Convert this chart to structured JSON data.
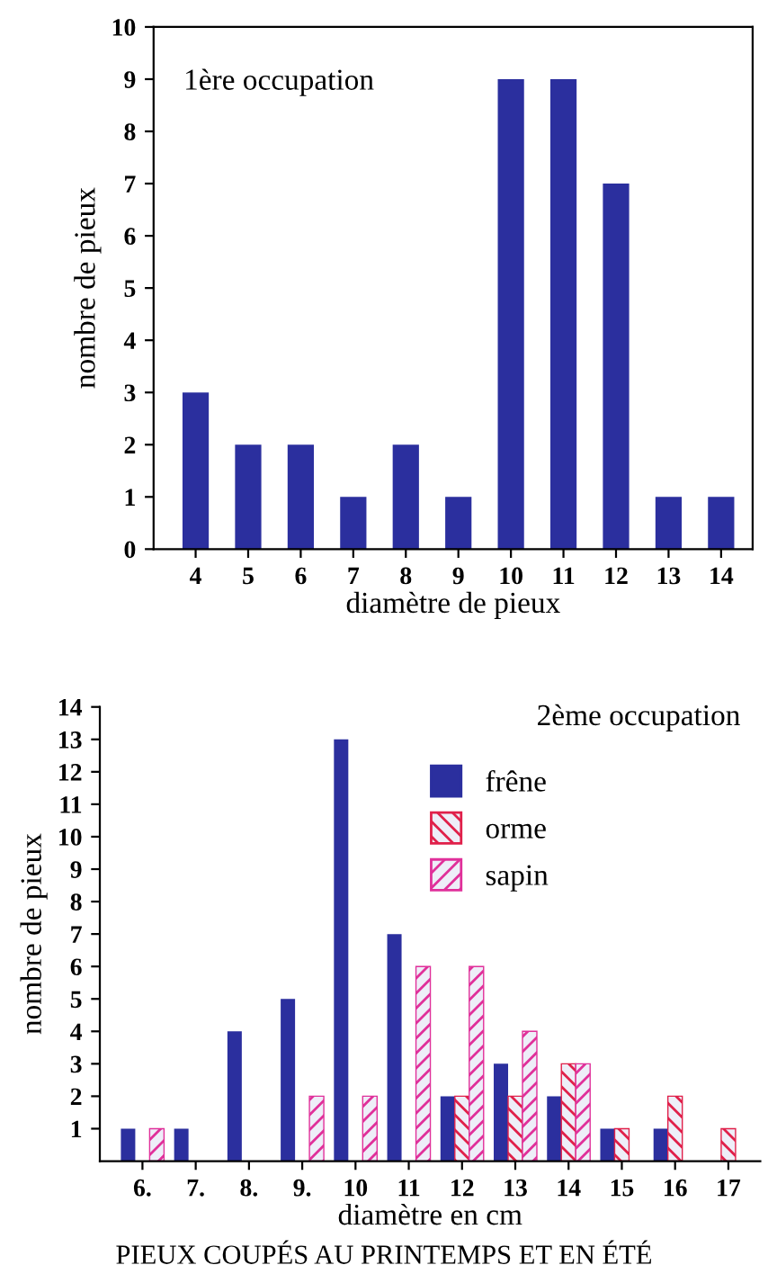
{
  "chart_data": [
    {
      "type": "bar",
      "title": "1ère occupation",
      "xlabel": "diamètre de pieux",
      "ylabel": "nombre de pieux",
      "categories": [
        "4",
        "5",
        "6",
        "7",
        "8",
        "9",
        "10",
        "11",
        "12",
        "13",
        "14"
      ],
      "values": [
        3,
        2,
        2,
        1,
        2,
        1,
        9,
        9,
        7,
        1,
        1
      ],
      "color": "#2b2f9e",
      "ylim": [
        0,
        10
      ],
      "yticks": [
        0,
        1,
        2,
        3,
        4,
        5,
        6,
        7,
        8,
        9,
        10
      ],
      "grid": false,
      "legend": false
    },
    {
      "type": "bar",
      "title": "2ème occupation",
      "xlabel": "diamètre en cm",
      "ylabel": "nombre de pieux",
      "categories": [
        "6.",
        "7.",
        "8.",
        "9.",
        "10",
        "11",
        "12",
        "13",
        "14",
        "15",
        "16",
        "17"
      ],
      "series": [
        {
          "name": "frêne",
          "color": "#2b2f9e",
          "values": [
            1,
            1,
            4,
            5,
            13,
            7,
            2,
            3,
            2,
            1,
            1,
            null
          ]
        },
        {
          "name": "orme",
          "color": "#e0204a",
          "values": [
            null,
            null,
            null,
            null,
            null,
            null,
            2,
            2,
            3,
            1,
            2,
            1
          ]
        },
        {
          "name": "sapin",
          "color": "#e0309a",
          "values": [
            1,
            null,
            null,
            2,
            2,
            6,
            6,
            4,
            3,
            null,
            null,
            null
          ]
        }
      ],
      "ylim": [
        0,
        14
      ],
      "yticks": [
        1,
        2,
        3,
        4,
        5,
        6,
        7,
        8,
        9,
        10,
        11,
        12,
        13,
        14
      ],
      "grid": false,
      "legend": "top right",
      "annotations": [
        "PIEUX COUPÉS AU PRINTEMPS ET EN ÉTÉ"
      ]
    }
  ]
}
